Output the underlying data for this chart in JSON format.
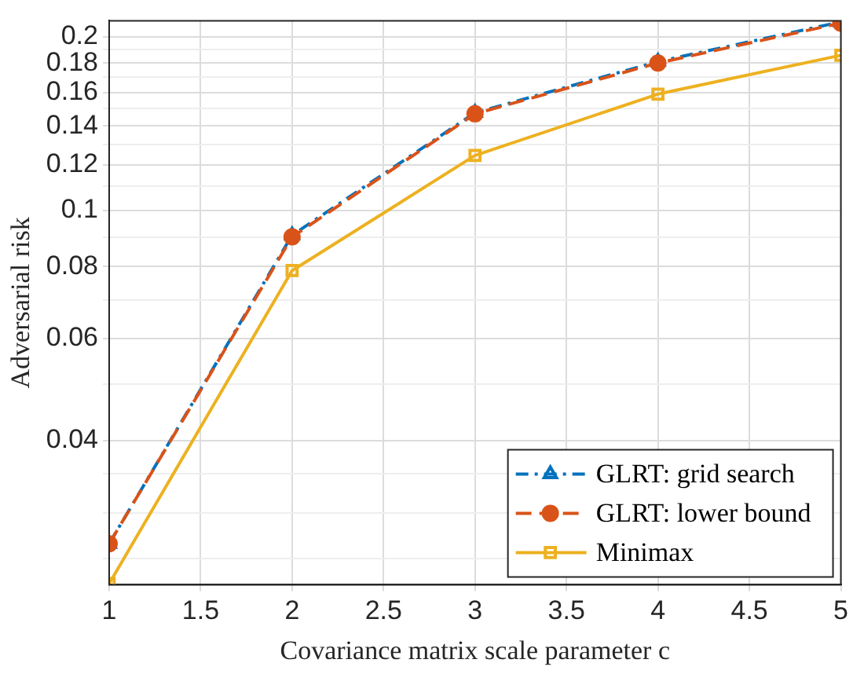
{
  "chart_data": {
    "type": "line",
    "xlabel": "Covariance matrix scale parameter c",
    "ylabel": "Adversarial risk",
    "x": [
      1,
      2,
      3,
      4,
      5
    ],
    "series": [
      {
        "name": "GLRT: grid search",
        "color": "#0072bd",
        "marker": "triangle",
        "line_style": "dashdot",
        "values": [
          0.0265,
          0.0906,
          0.1476,
          0.181,
          0.212
        ]
      },
      {
        "name": "GLRT: lower bound",
        "color": "#d95319",
        "marker": "circle",
        "line_style": "dashed",
        "values": [
          0.0265,
          0.09,
          0.147,
          0.18,
          0.211
        ]
      },
      {
        "name": "Minimax",
        "color": "#edb120",
        "marker": "square",
        "line_style": "solid",
        "values": [
          0.0226,
          0.0787,
          0.1245,
          0.159,
          0.1856
        ]
      }
    ],
    "log": "y",
    "xlim": [
      1,
      5
    ],
    "xticks": [
      1,
      1.5,
      2,
      2.5,
      3,
      3.5,
      4,
      4.5,
      5
    ],
    "ylim": [
      0.0225,
      0.213
    ],
    "yticks": [
      {
        "value": 0.025,
        "label": null
      },
      {
        "value": 0.03,
        "label": null
      },
      {
        "value": 0.035,
        "label": null
      },
      0.04,
      {
        "value": 0.05,
        "label": null
      },
      0.06,
      {
        "value": 0.07,
        "label": null
      },
      0.08,
      {
        "value": 0.09,
        "label": null
      },
      0.1,
      {
        "value": 0.11,
        "label": null
      },
      0.12,
      {
        "value": 0.13,
        "label": null
      },
      0.14,
      {
        "value": 0.15,
        "label": null
      },
      0.16,
      {
        "value": 0.17,
        "label": null
      },
      0.18,
      {
        "value": 0.19,
        "label": null
      },
      0.2
    ],
    "grid": true,
    "legend": "bottom right"
  }
}
